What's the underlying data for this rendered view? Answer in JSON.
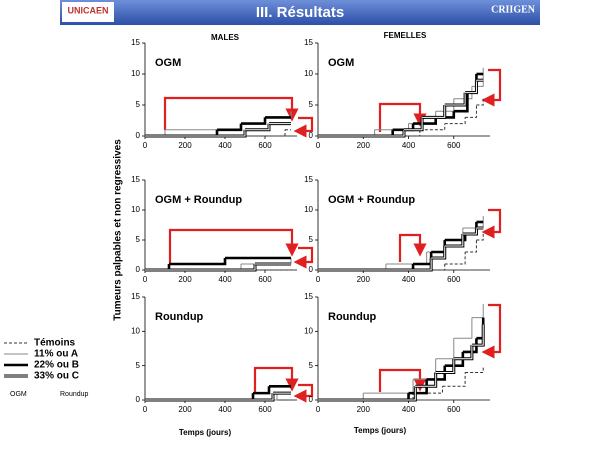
{
  "header": {
    "title": "III. Résultats",
    "logo_left": "UNICAEN",
    "logo_right": "CRIIGEN"
  },
  "columns": [
    "MALES",
    "FEMELLES"
  ],
  "y_label": "Tumeurs palpables et non regressives",
  "x_label": "Temps (jours)",
  "legend": {
    "items": [
      {
        "label": "Témoins",
        "style": "dashed"
      },
      {
        "label": "11% ou A",
        "style": "thin"
      },
      {
        "label": "22% ou B",
        "style": "thick"
      },
      {
        "label": "33% ou C",
        "style": "double"
      }
    ],
    "footer": [
      "OGM",
      "Roundup"
    ]
  },
  "chart_data": [
    {
      "type": "line",
      "step": true,
      "title": "OGM",
      "xlim": [
        0,
        760
      ],
      "ylim": [
        0,
        15
      ],
      "xticks": [
        0,
        200,
        400,
        600
      ],
      "yticks": [
        0,
        5,
        10,
        15
      ],
      "series": [
        {
          "style": "dashed",
          "x": [
            0,
            700,
            730
          ],
          "values": [
            0,
            1,
            1
          ]
        },
        {
          "style": "thin",
          "x": [
            0,
            100,
            480,
            600,
            730
          ],
          "values": [
            0,
            1,
            2,
            3,
            4
          ]
        },
        {
          "style": "thick",
          "x": [
            0,
            360,
            480,
            600,
            730
          ],
          "values": [
            0,
            1,
            2,
            3,
            3
          ]
        },
        {
          "style": "double",
          "x": [
            0,
            500,
            620,
            730
          ],
          "values": [
            0,
            1,
            2,
            2
          ]
        }
      ]
    },
    {
      "type": "line",
      "step": true,
      "title": "OGM",
      "xlim": [
        0,
        760
      ],
      "ylim": [
        0,
        15
      ],
      "xticks": [
        0,
        200,
        400,
        600
      ],
      "yticks": [
        0,
        5,
        10,
        15
      ],
      "series": [
        {
          "style": "dashed",
          "x": [
            0,
            450,
            560,
            650,
            700,
            730
          ],
          "values": [
            0,
            1,
            2,
            3,
            5,
            6
          ]
        },
        {
          "style": "thin",
          "x": [
            0,
            250,
            400,
            520,
            600,
            680,
            730
          ],
          "values": [
            0,
            1,
            2,
            4,
            6,
            8,
            11
          ]
        },
        {
          "style": "thick",
          "x": [
            0,
            330,
            420,
            520,
            600,
            660,
            700,
            730
          ],
          "values": [
            0,
            1,
            2,
            3,
            4,
            7,
            10,
            10
          ]
        },
        {
          "style": "double",
          "x": [
            0,
            380,
            460,
            560,
            650,
            700,
            730
          ],
          "values": [
            0,
            1,
            3,
            5,
            7,
            9,
            9
          ]
        }
      ]
    },
    {
      "type": "line",
      "step": true,
      "title": "OGM + Roundup",
      "xlim": [
        0,
        760
      ],
      "ylim": [
        0,
        15
      ],
      "xticks": [
        0,
        200,
        400,
        600
      ],
      "yticks": [
        0,
        5,
        10,
        15
      ],
      "series": [
        {
          "style": "dashed",
          "x": [
            0,
            730
          ],
          "values": [
            0,
            0
          ]
        },
        {
          "style": "thin",
          "x": [
            0,
            480,
            730
          ],
          "values": [
            0,
            1,
            2
          ]
        },
        {
          "style": "thick",
          "x": [
            0,
            120,
            400,
            730
          ],
          "values": [
            0,
            1,
            2,
            2
          ]
        },
        {
          "style": "double",
          "x": [
            0,
            550,
            730
          ],
          "values": [
            0,
            1,
            1
          ]
        }
      ]
    },
    {
      "type": "line",
      "step": true,
      "title": "OGM + Roundup",
      "xlim": [
        0,
        760
      ],
      "ylim": [
        0,
        15
      ],
      "xticks": [
        0,
        200,
        400,
        600
      ],
      "yticks": [
        0,
        5,
        10,
        15
      ],
      "series": [
        {
          "style": "dashed",
          "x": [
            0,
            560,
            650,
            700,
            730
          ],
          "values": [
            0,
            1,
            3,
            5,
            6
          ]
        },
        {
          "style": "thin",
          "x": [
            0,
            300,
            480,
            560,
            640,
            730
          ],
          "values": [
            0,
            1,
            3,
            5,
            7,
            9
          ]
        },
        {
          "style": "thick",
          "x": [
            0,
            420,
            500,
            560,
            650,
            700,
            730
          ],
          "values": [
            0,
            1,
            3,
            5,
            6,
            8,
            8
          ]
        },
        {
          "style": "double",
          "x": [
            0,
            500,
            560,
            640,
            700,
            730
          ],
          "values": [
            0,
            2,
            4,
            6,
            7,
            7
          ]
        }
      ]
    },
    {
      "type": "line",
      "step": true,
      "title": "Roundup",
      "xlim": [
        0,
        760
      ],
      "ylim": [
        0,
        15
      ],
      "xticks": [
        0,
        200,
        400,
        600
      ],
      "yticks": [
        0,
        5,
        10,
        15
      ],
      "series": [
        {
          "style": "dashed",
          "x": [
            0,
            730
          ],
          "values": [
            0,
            0
          ]
        },
        {
          "style": "thin",
          "x": [
            0,
            660,
            730
          ],
          "values": [
            0,
            1,
            1
          ]
        },
        {
          "style": "thick",
          "x": [
            0,
            540,
            620,
            730
          ],
          "values": [
            0,
            1,
            2,
            2
          ]
        },
        {
          "style": "double",
          "x": [
            0,
            640,
            730
          ],
          "values": [
            0,
            1,
            1
          ]
        }
      ]
    },
    {
      "type": "line",
      "step": true,
      "title": "Roundup",
      "xlim": [
        0,
        760
      ],
      "ylim": [
        0,
        15
      ],
      "xticks": [
        0,
        200,
        400,
        600
      ],
      "yticks": [
        0,
        5,
        10,
        15
      ],
      "series": [
        {
          "style": "dashed",
          "x": [
            0,
            420,
            550,
            650,
            730
          ],
          "values": [
            0,
            1,
            2,
            4,
            5
          ]
        },
        {
          "style": "thin",
          "x": [
            0,
            200,
            420,
            520,
            600,
            680,
            730
          ],
          "values": [
            0,
            1,
            3,
            6,
            9,
            12,
            14
          ]
        },
        {
          "style": "thick",
          "x": [
            0,
            400,
            480,
            560,
            640,
            700,
            730
          ],
          "values": [
            0,
            1,
            3,
            5,
            7,
            9,
            12
          ]
        },
        {
          "style": "double",
          "x": [
            0,
            430,
            520,
            600,
            680,
            730
          ],
          "values": [
            0,
            2,
            4,
            6,
            8,
            11
          ]
        }
      ]
    }
  ]
}
